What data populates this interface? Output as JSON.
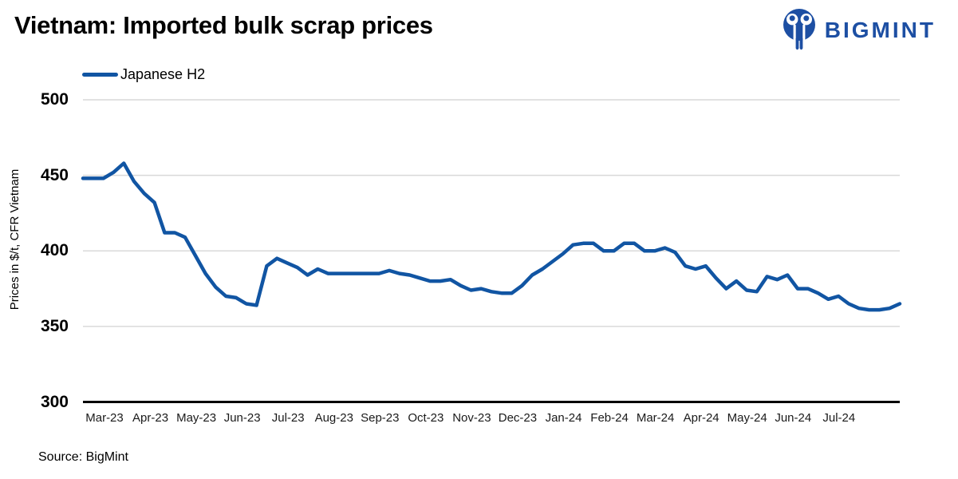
{
  "header": {
    "title": "Vietnam: Imported bulk scrap prices",
    "brand": "BIGMINT"
  },
  "legend": {
    "series_label": "Japanese H2"
  },
  "source": "Source: BigMint",
  "colors": {
    "line": "#1155a3",
    "brand": "#1d4fa3",
    "gridline": "#d9d9d9",
    "axis": "#000000"
  },
  "chart_data": {
    "type": "line",
    "title": "Vietnam: Imported bulk scrap prices",
    "xlabel": "",
    "ylabel": "Prices in $/t, CFR Vietnam",
    "ylim": [
      300,
      500
    ],
    "yticks": [
      300,
      350,
      400,
      450,
      500
    ],
    "grid": "horizontal",
    "legend_position": "top-left",
    "xticklabels": [
      "Mar-23",
      "Apr-23",
      "May-23",
      "Jun-23",
      "Jul-23",
      "Aug-23",
      "Sep-23",
      "Oct-23",
      "Nov-23",
      "Dec-23",
      "Jan-24",
      "Feb-24",
      "Mar-24",
      "Apr-24",
      "May-24",
      "Jun-24",
      "Jul-24"
    ],
    "x_unit": "weekly price assessments",
    "series": [
      {
        "name": "Japanese H2",
        "color": "#1155a3",
        "values": [
          448,
          448,
          448,
          452,
          458,
          446,
          438,
          432,
          412,
          412,
          409,
          397,
          385,
          376,
          370,
          369,
          365,
          364,
          390,
          395,
          392,
          389,
          384,
          388,
          385,
          385,
          385,
          385,
          385,
          385,
          387,
          385,
          384,
          382,
          380,
          380,
          381,
          377,
          374,
          375,
          373,
          372,
          372,
          377,
          384,
          388,
          393,
          398,
          404,
          405,
          405,
          400,
          400,
          405,
          405,
          400,
          400,
          402,
          399,
          390,
          388,
          390,
          382,
          375,
          380,
          374,
          373,
          383,
          381,
          384,
          375,
          375,
          372,
          368,
          370,
          365,
          362,
          361,
          361,
          362,
          365
        ]
      }
    ]
  }
}
